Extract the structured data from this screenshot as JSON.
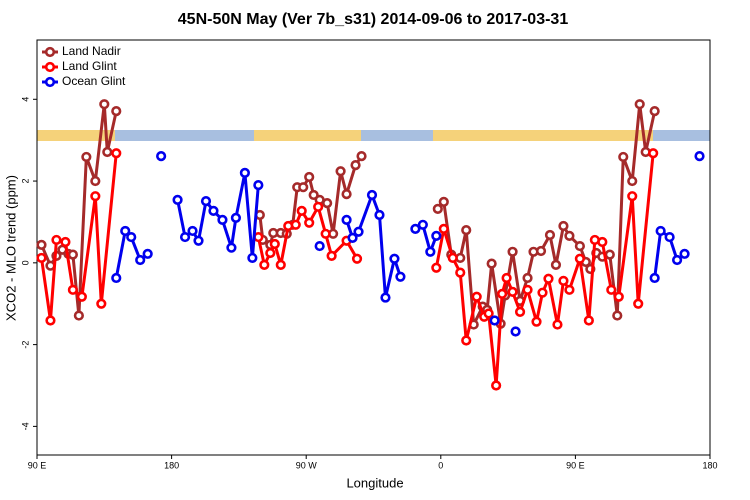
{
  "chart_data": {
    "type": "line",
    "title": "45N-50N May (Ver 7b_s31)   2014-09-06 to 2017-03-31",
    "xlabel": "Longitude",
    "ylabel": "XCO2 - MLO trend (ppm)",
    "xlim": [
      90,
      540
    ],
    "ylim": [
      -4.7,
      5.45
    ],
    "xticks": [
      {
        "value": 90,
        "label": "90 E"
      },
      180,
      {
        "value": 270,
        "label": "90 W"
      },
      {
        "value": 360,
        "label": "0"
      },
      {
        "value": 450,
        "label": "90 E"
      },
      {
        "value": 540,
        "label": "180"
      }
    ],
    "yticks": [
      -4,
      -2,
      0,
      2,
      4
    ],
    "legend": "top-left",
    "series": [
      {
        "name": "Land Nadir",
        "color": "#a52a2a",
        "x": [
          93,
          99,
          103,
          107,
          111,
          114,
          118,
          123,
          129,
          135,
          137,
          143,
          null,
          239,
          241,
          246,
          248,
          253,
          257,
          261,
          264,
          268,
          272,
          275,
          279,
          284,
          288,
          293,
          297,
          303,
          307,
          null,
          358,
          362,
          367,
          373,
          377,
          382,
          388,
          391,
          394,
          400,
          403,
          408,
          413,
          418,
          422,
          427,
          433,
          437,
          442,
          446,
          453,
          457,
          460,
          464,
          468,
          473,
          478,
          482,
          488,
          493,
          497,
          503
        ],
        "values": [
          0.44,
          -0.07,
          0.17,
          0.32,
          0.22,
          0.2,
          -1.29,
          2.59,
          2.0,
          3.88,
          2.71,
          3.71,
          null,
          1.17,
          0.56,
          0.44,
          0.73,
          0.73,
          0.71,
          0.93,
          1.85,
          1.85,
          2.1,
          1.66,
          1.54,
          1.46,
          0.71,
          2.24,
          1.68,
          2.39,
          2.61,
          null,
          1.32,
          1.49,
          0.2,
          0.12,
          0.8,
          -1.51,
          -1.07,
          -1.15,
          -0.02,
          -1.49,
          -0.8,
          0.27,
          -0.93,
          -0.37,
          0.27,
          0.29,
          0.68,
          -0.05,
          0.9,
          0.66,
          0.41,
          0.02,
          -0.15,
          0.24,
          0.15,
          0.2,
          -1.29,
          2.59,
          2.0,
          3.88,
          2.71,
          3.71
        ]
      },
      {
        "name": "Land Glint",
        "color": "#ff0000",
        "x": [
          93,
          99,
          103,
          109,
          114,
          120,
          129,
          133,
          143,
          null,
          238,
          242,
          246,
          249,
          253,
          258,
          263,
          267,
          272,
          278,
          283,
          287,
          297,
          304,
          null,
          357,
          362,
          368,
          373,
          377,
          384,
          389,
          392,
          397,
          401,
          404,
          408,
          413,
          418,
          424,
          428,
          432,
          438,
          442,
          446,
          453,
          459,
          463,
          468,
          474,
          479,
          488,
          492,
          502
        ],
        "values": [
          0.12,
          -1.41,
          0.56,
          0.51,
          -0.66,
          -0.83,
          1.63,
          -1.0,
          2.68,
          null,
          0.63,
          -0.05,
          0.24,
          0.46,
          -0.05,
          0.9,
          0.93,
          1.27,
          0.98,
          1.37,
          0.71,
          0.17,
          0.54,
          0.1,
          null,
          -0.12,
          0.83,
          0.12,
          -0.24,
          -1.9,
          -0.83,
          -1.32,
          -1.24,
          -3.0,
          -0.76,
          -0.37,
          -0.71,
          -1.2,
          -0.66,
          -1.44,
          -0.73,
          -0.39,
          -1.51,
          -0.44,
          -0.66,
          0.1,
          -1.41,
          0.56,
          0.51,
          -0.66,
          -0.83,
          1.63,
          -1.0,
          2.68
        ]
      },
      {
        "name": "Ocean Glint",
        "color": "#0000ee",
        "x": [
          143,
          149,
          153,
          159,
          164,
          null,
          173,
          null,
          184,
          189,
          194,
          198,
          203,
          208,
          214,
          220,
          223,
          229,
          234,
          238,
          null,
          279,
          null,
          297,
          301,
          305,
          314,
          319,
          323,
          329,
          333,
          null,
          343,
          348,
          353,
          357,
          null,
          396,
          null,
          410,
          null,
          503,
          507,
          513,
          518,
          523,
          null,
          533
        ],
        "values": [
          -0.37,
          0.78,
          0.63,
          0.07,
          0.22,
          null,
          2.61,
          null,
          1.54,
          0.63,
          0.78,
          0.54,
          1.51,
          1.27,
          1.05,
          0.37,
          1.1,
          2.2,
          0.12,
          1.9,
          null,
          0.41,
          null,
          1.05,
          0.61,
          0.76,
          1.66,
          1.17,
          -0.85,
          0.1,
          -0.34,
          null,
          0.83,
          0.93,
          0.27,
          0.66,
          null,
          -1.41,
          null,
          -1.68,
          null,
          -0.37,
          0.78,
          0.63,
          0.07,
          0.22,
          null,
          2.61
        ]
      }
    ]
  }
}
